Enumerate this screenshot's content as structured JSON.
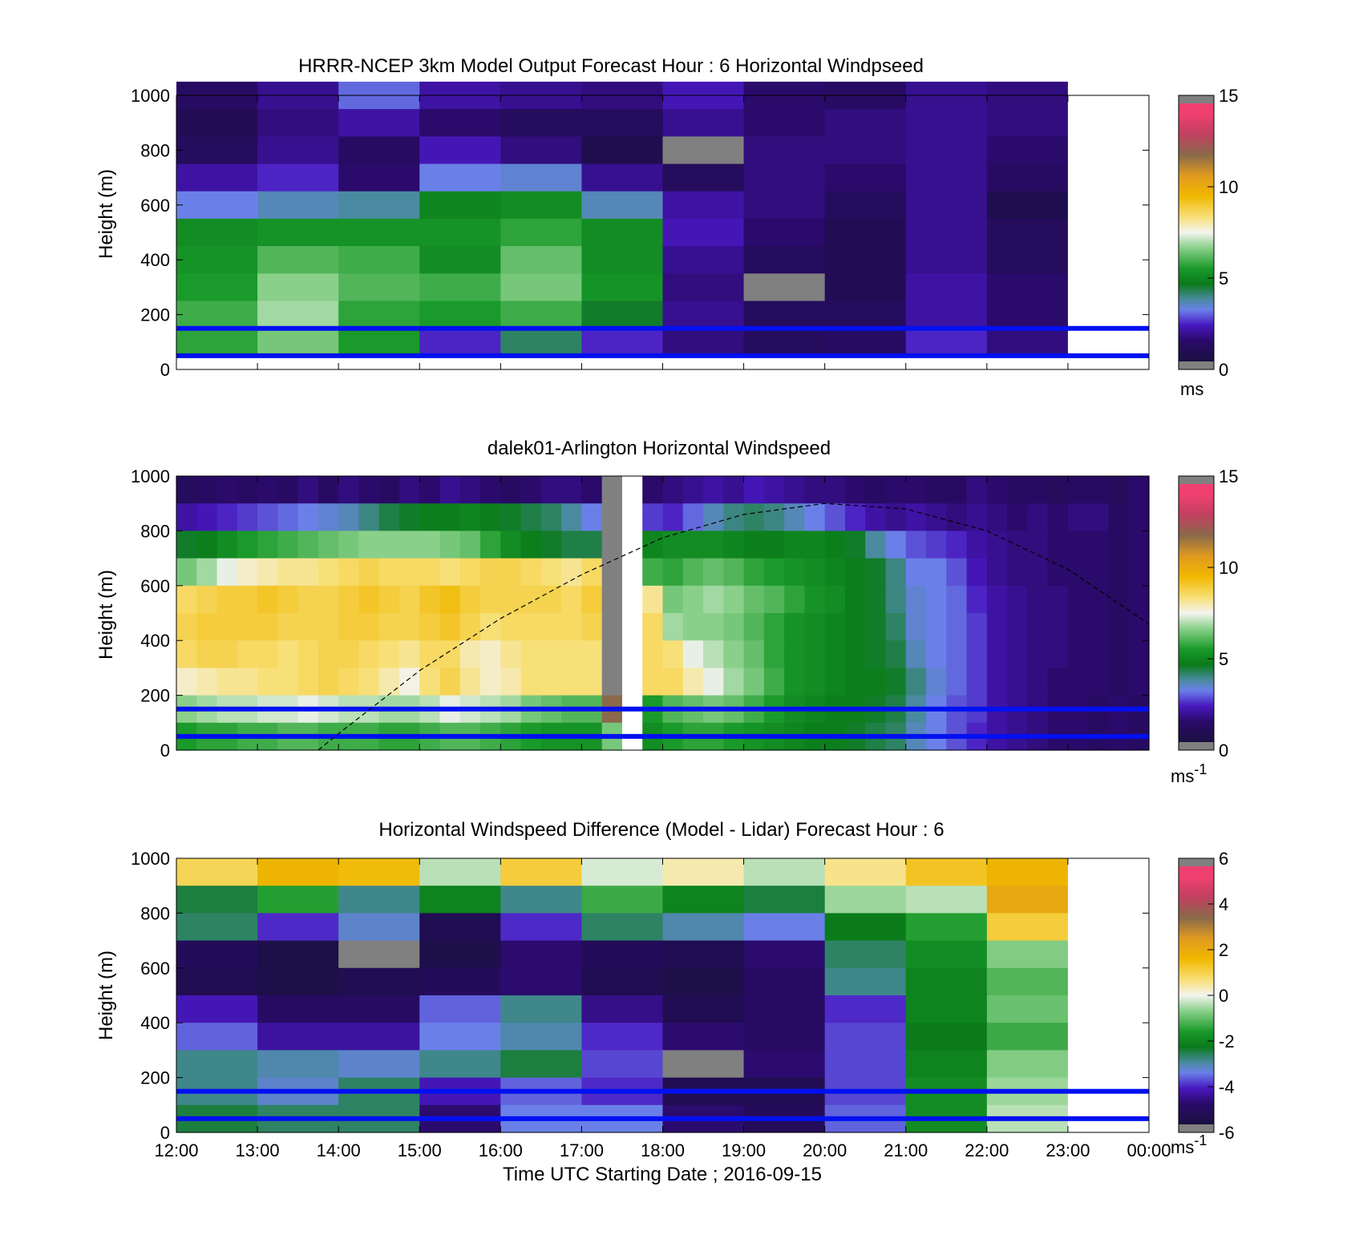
{
  "figure": {
    "xlabel": "Time UTC  Starting Date ; 2016-09-15",
    "x_tick_labels": [
      "12:00",
      "13:00",
      "14:00",
      "15:00",
      "16:00",
      "17:00",
      "18:00",
      "19:00",
      "20:00",
      "21:00",
      "22:00",
      "23:00",
      "00:00"
    ]
  },
  "chart_data": [
    {
      "type": "heatmap",
      "title": "HRRR-NCEP 3km Model Output   Forecast Hour : 6 Horizontal Windpseed",
      "ylabel": "Height (m)",
      "xlim": [
        "12:00",
        "00:00"
      ],
      "ylim": [
        0,
        1000
      ],
      "y_ticks": [
        0,
        200,
        400,
        600,
        800,
        1000
      ],
      "x": [
        "12:00",
        "13:00",
        "14:00",
        "15:00",
        "16:00",
        "17:00",
        "18:00",
        "19:00",
        "20:00",
        "21:00",
        "22:00",
        "23:00"
      ],
      "heights": [
        1000,
        900,
        800,
        700,
        600,
        500,
        400,
        300,
        200,
        100
      ],
      "values": [
        [
          1.0,
          1.6,
          2.8,
          1.8,
          1.6,
          1.4,
          2.0,
          1.2,
          1.0,
          1.6,
          1.4,
          null
        ],
        [
          0.6,
          1.4,
          1.8,
          1.2,
          0.8,
          0.8,
          1.6,
          1.2,
          1.4,
          1.6,
          1.4,
          null
        ],
        [
          0.8,
          1.6,
          1.0,
          2.0,
          1.4,
          0.4,
          null,
          1.4,
          1.4,
          1.6,
          1.2,
          null
        ],
        [
          1.8,
          2.2,
          1.2,
          3.0,
          3.2,
          1.6,
          0.8,
          1.4,
          1.2,
          1.6,
          1.0,
          null
        ],
        [
          3.0,
          3.4,
          3.6,
          4.8,
          5.0,
          3.4,
          1.8,
          1.4,
          0.8,
          1.6,
          0.4,
          null
        ],
        [
          5.0,
          5.2,
          5.2,
          5.2,
          5.6,
          5.0,
          2.0,
          1.2,
          0.6,
          1.6,
          0.8,
          null
        ],
        [
          5.2,
          6.0,
          5.8,
          5.0,
          6.2,
          5.0,
          1.6,
          0.8,
          0.6,
          1.6,
          0.8,
          null
        ],
        [
          5.4,
          6.6,
          6.0,
          5.8,
          6.4,
          5.2,
          1.4,
          null,
          0.6,
          1.8,
          1.2,
          null
        ],
        [
          5.8,
          6.8,
          5.6,
          5.4,
          5.8,
          4.4,
          1.6,
          0.8,
          0.8,
          1.8,
          1.2,
          null
        ],
        [
          5.6,
          6.4,
          5.4,
          2.2,
          4.0,
          2.2,
          1.4,
          0.8,
          1.0,
          2.2,
          1.4,
          null
        ]
      ],
      "reference_heights": [
        150,
        50
      ],
      "colorbar": {
        "range": [
          0,
          15
        ],
        "ticks": [
          0,
          5,
          10,
          15
        ],
        "unit": "ms"
      }
    },
    {
      "type": "heatmap",
      "title": "dalek01-Arlington  Horizontal Windspeed",
      "ylabel": "Height (m)",
      "xlim": [
        "12:00",
        "00:00"
      ],
      "ylim": [
        0,
        1000
      ],
      "y_ticks": [
        0,
        200,
        400,
        600,
        800,
        1000
      ],
      "x": [
        "12:00",
        "12:15",
        "12:30",
        "12:45",
        "13:00",
        "13:15",
        "13:30",
        "13:45",
        "14:00",
        "14:15",
        "14:30",
        "14:45",
        "15:00",
        "15:15",
        "15:30",
        "15:45",
        "16:00",
        "16:15",
        "16:30",
        "16:45",
        "17:00",
        "17:15",
        "17:30",
        "17:45",
        "18:00",
        "18:15",
        "18:30",
        "18:45",
        "19:00",
        "19:15",
        "19:30",
        "19:45",
        "20:00",
        "20:15",
        "20:30",
        "20:45",
        "21:00",
        "21:15",
        "21:30",
        "21:45",
        "22:00",
        "22:15",
        "22:30",
        "22:45",
        "23:00",
        "23:15",
        "23:30",
        "23:45"
      ],
      "heights": [
        950,
        850,
        750,
        650,
        550,
        450,
        350,
        250,
        150,
        50
      ],
      "values": [
        [
          0.8,
          1.0,
          1.2,
          1.0,
          1.2,
          1.0,
          1.4,
          1.0,
          1.4,
          1.2,
          1.0,
          1.4,
          1.2,
          1.6,
          1.4,
          1.2,
          1.0,
          1.2,
          1.4,
          1.4,
          1.2,
          null,
          null,
          1.2,
          1.4,
          1.6,
          1.8,
          1.6,
          2.0,
          1.8,
          1.6,
          1.4,
          1.4,
          1.2,
          1.0,
          1.2,
          1.2,
          1.0,
          1.0,
          1.4,
          1.2,
          1.0,
          1.0,
          0.8,
          1.0,
          1.0,
          0.8,
          1.2
        ],
        [
          1.8,
          2.0,
          2.2,
          2.4,
          2.6,
          2.8,
          3.0,
          3.2,
          3.4,
          3.8,
          4.2,
          4.4,
          4.6,
          4.6,
          4.8,
          4.6,
          4.4,
          4.2,
          4.0,
          3.6,
          3.0,
          null,
          null,
          2.4,
          2.2,
          2.8,
          3.4,
          3.8,
          4.0,
          3.8,
          3.4,
          3.0,
          2.6,
          2.2,
          1.8,
          1.6,
          1.8,
          1.6,
          1.4,
          1.6,
          1.4,
          1.2,
          1.4,
          1.2,
          1.4,
          1.4,
          1.0,
          1.2
        ],
        [
          4.4,
          4.6,
          5.0,
          5.4,
          5.6,
          5.8,
          6.0,
          6.2,
          6.4,
          6.6,
          6.6,
          6.6,
          6.6,
          6.4,
          6.2,
          5.6,
          5.0,
          4.6,
          4.4,
          4.2,
          4.2,
          null,
          null,
          4.8,
          5.0,
          5.0,
          5.0,
          4.8,
          4.6,
          4.6,
          4.8,
          4.8,
          4.6,
          4.4,
          3.6,
          3.0,
          2.6,
          2.4,
          2.2,
          1.8,
          1.6,
          1.4,
          1.4,
          1.2,
          1.2,
          1.2,
          1.0,
          1.2
        ],
        [
          6.4,
          6.8,
          7.4,
          7.8,
          8.0,
          8.2,
          8.2,
          8.4,
          8.6,
          8.8,
          8.6,
          8.6,
          8.6,
          8.4,
          8.6,
          8.8,
          8.8,
          8.6,
          8.4,
          8.2,
          8.6,
          null,
          null,
          5.8,
          5.6,
          6.0,
          6.2,
          6.0,
          5.6,
          5.4,
          5.2,
          5.0,
          4.8,
          4.6,
          4.4,
          3.8,
          3.0,
          3.0,
          2.6,
          2.0,
          1.6,
          1.4,
          1.4,
          1.2,
          1.2,
          1.2,
          1.0,
          1.2
        ],
        [
          8.6,
          8.8,
          9.0,
          9.0,
          9.2,
          9.0,
          8.8,
          8.8,
          9.0,
          9.2,
          9.0,
          8.8,
          9.2,
          9.4,
          9.0,
          8.8,
          8.8,
          8.8,
          8.8,
          8.6,
          9.0,
          null,
          null,
          8.2,
          6.4,
          6.6,
          6.8,
          6.6,
          6.2,
          6.0,
          5.6,
          5.2,
          5.0,
          4.6,
          4.4,
          3.8,
          3.2,
          3.0,
          2.8,
          2.2,
          1.8,
          1.6,
          1.4,
          1.4,
          1.2,
          1.2,
          1.0,
          1.2
        ],
        [
          8.8,
          9.0,
          9.0,
          9.0,
          9.0,
          8.8,
          8.8,
          8.8,
          9.0,
          9.0,
          8.8,
          8.8,
          9.0,
          9.2,
          8.8,
          8.4,
          8.6,
          8.6,
          8.6,
          8.6,
          8.8,
          null,
          null,
          8.6,
          6.8,
          6.6,
          6.6,
          6.4,
          6.0,
          5.6,
          5.2,
          5.0,
          4.8,
          4.6,
          4.4,
          4.0,
          3.2,
          3.0,
          2.8,
          2.4,
          1.8,
          1.6,
          1.4,
          1.4,
          1.2,
          1.2,
          1.0,
          1.2
        ],
        [
          8.6,
          8.8,
          8.8,
          8.6,
          8.6,
          8.4,
          8.6,
          8.8,
          8.8,
          8.6,
          8.4,
          8.2,
          8.6,
          8.6,
          8.0,
          7.8,
          8.2,
          8.4,
          8.4,
          8.4,
          8.4,
          null,
          null,
          8.6,
          8.4,
          7.4,
          7.0,
          6.6,
          6.2,
          5.6,
          5.2,
          5.0,
          4.8,
          4.6,
          4.4,
          4.2,
          3.4,
          3.0,
          2.8,
          2.4,
          1.8,
          1.6,
          1.4,
          1.4,
          1.2,
          1.2,
          1.0,
          1.2
        ],
        [
          7.8,
          8.0,
          8.2,
          8.2,
          8.4,
          8.4,
          8.6,
          8.8,
          8.6,
          8.4,
          8.0,
          7.6,
          8.4,
          8.8,
          8.2,
          7.8,
          8.0,
          8.4,
          8.4,
          8.4,
          8.4,
          null,
          null,
          8.6,
          8.6,
          8.0,
          7.4,
          6.8,
          6.4,
          5.8,
          5.2,
          5.0,
          4.8,
          4.6,
          4.6,
          4.4,
          3.8,
          3.2,
          2.8,
          2.4,
          1.8,
          1.6,
          1.4,
          1.2,
          1.2,
          1.2,
          1.0,
          1.2
        ],
        [
          6.6,
          6.8,
          7.0,
          7.0,
          7.2,
          7.2,
          7.4,
          7.2,
          7.0,
          7.0,
          6.8,
          6.8,
          7.0,
          7.4,
          7.2,
          7.0,
          6.8,
          6.4,
          6.2,
          6.0,
          6.0,
          12.0,
          null,
          5.4,
          6.0,
          6.2,
          6.4,
          6.2,
          5.8,
          5.4,
          5.0,
          4.8,
          4.6,
          4.6,
          4.4,
          4.2,
          3.6,
          3.0,
          2.6,
          2.4,
          1.8,
          1.6,
          1.4,
          1.2,
          1.2,
          1.0,
          1.2,
          1.0
        ],
        [
          5.4,
          5.6,
          5.6,
          5.8,
          5.8,
          6.0,
          6.0,
          5.8,
          5.8,
          5.8,
          5.6,
          5.6,
          5.8,
          6.0,
          6.0,
          5.8,
          5.6,
          5.4,
          5.2,
          5.2,
          5.2,
          6.4,
          null,
          5.0,
          5.4,
          5.6,
          5.6,
          5.4,
          5.2,
          5.0,
          4.8,
          4.6,
          4.6,
          4.4,
          4.2,
          4.0,
          3.4,
          3.0,
          2.6,
          2.2,
          1.8,
          1.6,
          1.4,
          1.2,
          1.2,
          1.0,
          1.2,
          1.0
        ]
      ],
      "reference_heights": [
        150,
        50
      ],
      "overlay_curve": {
        "style": "dashed",
        "x": [
          "13:45",
          "14:00",
          "15:00",
          "16:00",
          "17:00",
          "18:00",
          "19:00",
          "20:00",
          "21:00",
          "22:00",
          "23:00",
          "00:00"
        ],
        "y": [
          0,
          60,
          290,
          480,
          640,
          775,
          860,
          900,
          880,
          800,
          660,
          460
        ]
      },
      "colorbar": {
        "range": [
          0,
          15
        ],
        "ticks": [
          0,
          5,
          10,
          15
        ],
        "unit": "ms",
        "unit_exponent": "-1"
      }
    },
    {
      "type": "heatmap",
      "title": "Horizontal Windspeed Difference (Model - Lidar) Forecast Hour : 6",
      "ylabel": "Height (m)",
      "xlabel": "Time UTC  Starting Date ; 2016-09-15",
      "xlim": [
        "12:00",
        "00:00"
      ],
      "ylim": [
        0,
        1000
      ],
      "y_ticks": [
        0,
        200,
        400,
        600,
        800,
        1000
      ],
      "x": [
        "12:00",
        "13:00",
        "14:00",
        "15:00",
        "16:00",
        "17:00",
        "18:00",
        "19:00",
        "20:00",
        "21:00",
        "22:00",
        "23:00"
      ],
      "heights": [
        950,
        850,
        750,
        650,
        550,
        450,
        350,
        250,
        150,
        50
      ],
      "values": [
        [
          1.0,
          1.8,
          1.6,
          -0.4,
          1.2,
          -0.2,
          0.4,
          -0.4,
          0.6,
          1.4,
          1.8,
          null
        ],
        [
          -2.6,
          -1.6,
          -3.0,
          -2.2,
          -3.0,
          -1.4,
          -2.2,
          -2.6,
          -0.6,
          -0.4,
          2.2,
          null
        ],
        [
          -2.8,
          -4.2,
          -3.4,
          -5.6,
          -4.2,
          -2.8,
          -3.2,
          -3.6,
          -2.4,
          -1.6,
          1.2,
          null
        ],
        [
          -5.4,
          -5.8,
          null,
          -5.8,
          -5.0,
          -5.4,
          -5.6,
          -5.0,
          -2.8,
          -2.0,
          -0.8,
          null
        ],
        [
          -5.6,
          -5.8,
          -5.6,
          -5.4,
          -5.0,
          -5.6,
          -5.8,
          -5.2,
          -3.0,
          -2.2,
          -1.2,
          null
        ],
        [
          -4.4,
          -5.2,
          -5.2,
          -3.8,
          -3.0,
          -4.8,
          -5.6,
          -5.2,
          -4.2,
          -2.2,
          -1.0,
          null
        ],
        [
          -3.8,
          -4.6,
          -4.6,
          -3.6,
          -3.2,
          -4.2,
          -5.0,
          -5.2,
          -4.0,
          -2.4,
          -1.4,
          null
        ],
        [
          -3.0,
          -3.2,
          -3.4,
          -3.0,
          -2.6,
          -4.0,
          null,
          -5.0,
          -4.0,
          -2.2,
          -0.8,
          null
        ],
        [
          -3.0,
          -3.4,
          -2.8,
          -4.4,
          -3.8,
          -4.2,
          -5.6,
          -5.6,
          -4.0,
          -2.0,
          -0.6,
          null
        ],
        [
          -2.6,
          -2.8,
          -2.8,
          -5.0,
          -3.6,
          -3.6,
          -5.0,
          -5.4,
          -3.8,
          -2.0,
          -0.4,
          null
        ]
      ],
      "reference_heights": [
        150,
        50
      ],
      "colorbar": {
        "range": [
          -6,
          6
        ],
        "ticks": [
          -6,
          -4,
          -2,
          0,
          2,
          4,
          6
        ],
        "unit": "ms",
        "unit_exponent": "-1"
      }
    }
  ]
}
